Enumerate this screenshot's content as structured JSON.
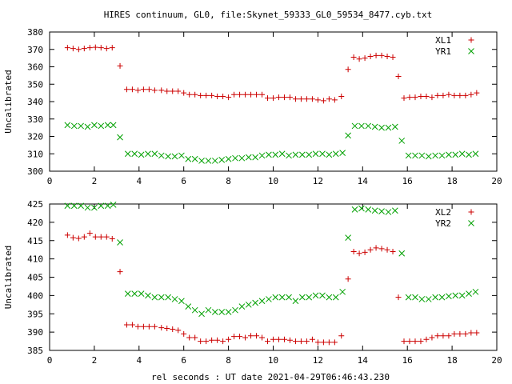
{
  "title": "HIRES continuum, GL0, file:Skynet_59333_GL0_59534_8477.cyb.txt",
  "xlabel": "rel seconds : UT date 2021-04-29T06:46:43.230",
  "colors": {
    "red": "#cc0000",
    "green": "#00a000"
  },
  "chart_data": [
    {
      "type": "scatter",
      "ylabel": "Uncalibrated",
      "xlim": [
        0,
        20
      ],
      "ylim": [
        300,
        380
      ],
      "xticks": [
        0,
        2,
        4,
        6,
        8,
        10,
        12,
        14,
        16,
        18,
        20
      ],
      "yticks": [
        300,
        310,
        320,
        330,
        340,
        350,
        360,
        370,
        380
      ],
      "grid": false,
      "legend_position": "top-right",
      "series": [
        {
          "name": "XL1",
          "marker": "plus",
          "color": "#cc0000",
          "x": [
            0.8,
            1.05,
            1.3,
            1.55,
            1.8,
            2.05,
            2.3,
            2.55,
            2.8,
            3.15,
            3.45,
            3.7,
            3.95,
            4.2,
            4.45,
            4.7,
            5.0,
            5.25,
            5.5,
            5.75,
            6.0,
            6.25,
            6.5,
            6.75,
            7.0,
            7.25,
            7.5,
            7.75,
            8.0,
            8.25,
            8.5,
            8.75,
            9.0,
            9.25,
            9.5,
            9.75,
            10.0,
            10.25,
            10.5,
            10.75,
            11.0,
            11.25,
            11.5,
            11.75,
            12.0,
            12.25,
            12.5,
            12.75,
            13.05,
            13.35,
            13.6,
            13.85,
            14.1,
            14.35,
            14.6,
            14.85,
            15.1,
            15.35,
            15.6,
            15.85,
            16.1,
            16.35,
            16.6,
            16.85,
            17.1,
            17.35,
            17.6,
            17.85,
            18.1,
            18.35,
            18.6,
            18.85,
            19.1
          ],
          "y": [
            371,
            370.5,
            370,
            370.5,
            371,
            371.2,
            371,
            370.5,
            371,
            360.5,
            347,
            347,
            346.5,
            347,
            347,
            346.5,
            346.5,
            346,
            346,
            346,
            345,
            344,
            344,
            343.5,
            343.5,
            343.5,
            343,
            343,
            342.5,
            344,
            344,
            344,
            344,
            344,
            344,
            342,
            342,
            342.5,
            342.5,
            342.5,
            341.5,
            341.5,
            341.5,
            341.5,
            341,
            340.5,
            341.5,
            341,
            343,
            358.5,
            365.5,
            364.5,
            365,
            366,
            366.5,
            366.5,
            366,
            365.5,
            354.5,
            342,
            342.5,
            342.5,
            343,
            343,
            342.5,
            343.5,
            343.5,
            344,
            343.5,
            343.5,
            343.5,
            344,
            345
          ]
        },
        {
          "name": "YR1",
          "marker": "cross",
          "color": "#00a000",
          "x": [
            0.8,
            1.1,
            1.4,
            1.7,
            2.0,
            2.3,
            2.6,
            2.85,
            3.15,
            3.5,
            3.8,
            4.1,
            4.4,
            4.7,
            5.0,
            5.3,
            5.6,
            5.9,
            6.2,
            6.5,
            6.8,
            7.1,
            7.4,
            7.7,
            8.0,
            8.3,
            8.6,
            8.9,
            9.2,
            9.5,
            9.8,
            10.1,
            10.4,
            10.7,
            11.0,
            11.3,
            11.6,
            11.9,
            12.2,
            12.5,
            12.8,
            13.1,
            13.35,
            13.65,
            13.95,
            14.25,
            14.55,
            14.85,
            15.15,
            15.45,
            15.75,
            16.05,
            16.35,
            16.65,
            16.95,
            17.25,
            17.55,
            17.85,
            18.15,
            18.45,
            18.75,
            19.05
          ],
          "y": [
            326.5,
            326,
            326,
            325.5,
            326.5,
            326,
            326.5,
            326.5,
            319.5,
            310,
            310,
            309.5,
            310,
            310,
            309,
            308.5,
            308.5,
            309,
            307,
            307,
            306,
            306,
            306,
            306.5,
            307,
            307.5,
            307.5,
            308,
            308,
            309,
            309.5,
            309.5,
            310,
            309,
            309.5,
            309.5,
            309.5,
            310,
            310,
            309.5,
            310,
            310.5,
            320.5,
            326,
            326,
            326,
            325.5,
            325,
            325,
            325.5,
            317.5,
            309,
            309,
            309,
            308.5,
            309,
            309,
            309.5,
            309.5,
            310,
            309.5,
            310
          ]
        }
      ]
    },
    {
      "type": "scatter",
      "ylabel": "Uncalibrated",
      "xlim": [
        0,
        20
      ],
      "ylim": [
        385,
        425
      ],
      "xticks": [
        0,
        2,
        4,
        6,
        8,
        10,
        12,
        14,
        16,
        18,
        20
      ],
      "yticks": [
        385,
        390,
        395,
        400,
        405,
        410,
        415,
        420,
        425
      ],
      "grid": false,
      "legend_position": "top-right",
      "series": [
        {
          "name": "XL2",
          "marker": "plus",
          "color": "#cc0000",
          "x": [
            0.8,
            1.05,
            1.3,
            1.55,
            1.8,
            2.05,
            2.3,
            2.55,
            2.8,
            3.15,
            3.45,
            3.7,
            3.95,
            4.2,
            4.45,
            4.7,
            5.0,
            5.25,
            5.5,
            5.75,
            6.0,
            6.25,
            6.5,
            6.75,
            7.0,
            7.25,
            7.5,
            7.75,
            8.0,
            8.25,
            8.5,
            8.75,
            9.0,
            9.25,
            9.5,
            9.75,
            10.0,
            10.25,
            10.5,
            10.75,
            11.0,
            11.25,
            11.5,
            11.75,
            12.0,
            12.25,
            12.5,
            12.75,
            13.05,
            13.35,
            13.6,
            13.85,
            14.1,
            14.35,
            14.6,
            14.85,
            15.1,
            15.35,
            15.6,
            15.85,
            16.1,
            16.35,
            16.6,
            16.85,
            17.1,
            17.35,
            17.6,
            17.85,
            18.1,
            18.35,
            18.6,
            18.85,
            19.1
          ],
          "y": [
            416.5,
            415.8,
            415.6,
            416,
            417,
            416,
            416,
            416,
            415.5,
            406.5,
            392,
            392,
            391.5,
            391.5,
            391.5,
            391.5,
            391.2,
            391,
            390.8,
            390.5,
            389.5,
            388.5,
            388.5,
            387.5,
            387.5,
            387.8,
            387.8,
            387.5,
            388,
            388.8,
            388.8,
            388.5,
            389,
            389,
            388.5,
            387.5,
            388,
            388,
            388,
            387.8,
            387.5,
            387.5,
            387.5,
            388,
            387.2,
            387.2,
            387.2,
            387.2,
            389,
            404.5,
            412,
            411.5,
            411.8,
            412.5,
            413,
            412.8,
            412.5,
            412,
            399.5,
            387.5,
            387.5,
            387.5,
            387.5,
            388,
            388.5,
            389,
            389,
            389,
            389.5,
            389.5,
            389.5,
            389.8,
            389.8
          ]
        },
        {
          "name": "YR2",
          "marker": "cross",
          "color": "#00a000",
          "x": [
            0.8,
            1.1,
            1.4,
            1.7,
            2.0,
            2.3,
            2.6,
            2.85,
            3.15,
            3.5,
            3.8,
            4.1,
            4.4,
            4.7,
            5.0,
            5.3,
            5.6,
            5.9,
            6.2,
            6.5,
            6.8,
            7.1,
            7.4,
            7.7,
            8.0,
            8.3,
            8.6,
            8.9,
            9.2,
            9.5,
            9.8,
            10.1,
            10.4,
            10.7,
            11.0,
            11.3,
            11.6,
            11.9,
            12.2,
            12.5,
            12.8,
            13.1,
            13.35,
            13.65,
            13.95,
            14.25,
            14.55,
            14.85,
            15.15,
            15.45,
            15.75,
            16.05,
            16.35,
            16.65,
            16.95,
            17.25,
            17.55,
            17.85,
            18.15,
            18.45,
            18.75,
            19.05
          ],
          "y": [
            424.5,
            424.5,
            424.5,
            424,
            424,
            424.5,
            424.5,
            424.8,
            414.5,
            400.5,
            400.5,
            400.5,
            400,
            399.5,
            399.5,
            399.5,
            399,
            398.5,
            397,
            396,
            395,
            396,
            395.5,
            395.5,
            395.5,
            396,
            397,
            397.5,
            398,
            398.5,
            399,
            399.5,
            399.5,
            399.5,
            398.5,
            399.5,
            399.5,
            400,
            400,
            399.5,
            399.5,
            401,
            415.8,
            423.5,
            423.8,
            423.5,
            423.2,
            423,
            422.8,
            423.2,
            411.5,
            399.5,
            399.5,
            399,
            399,
            399.5,
            399.5,
            399.8,
            400,
            400,
            400.5,
            401
          ]
        }
      ]
    }
  ]
}
